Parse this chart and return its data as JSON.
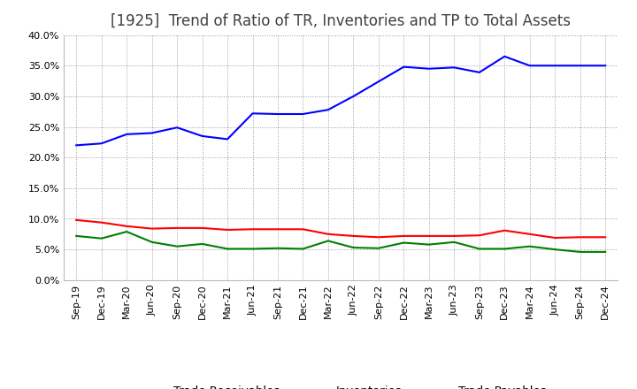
{
  "title": "[1925]  Trend of Ratio of TR, Inventories and TP to Total Assets",
  "x_labels": [
    "Sep-19",
    "Dec-19",
    "Mar-20",
    "Jun-20",
    "Sep-20",
    "Dec-20",
    "Mar-21",
    "Jun-21",
    "Sep-21",
    "Dec-21",
    "Mar-22",
    "Jun-22",
    "Sep-22",
    "Dec-22",
    "Mar-23",
    "Jun-23",
    "Sep-23",
    "Dec-23",
    "Mar-24",
    "Jun-24",
    "Sep-24",
    "Dec-24"
  ],
  "trade_receivables": [
    9.8,
    9.4,
    8.8,
    8.4,
    8.5,
    8.5,
    8.2,
    8.3,
    8.3,
    8.3,
    7.5,
    7.2,
    7.0,
    7.2,
    7.2,
    7.2,
    7.3,
    8.1,
    7.5,
    6.9,
    7.0,
    7.0
  ],
  "inventories": [
    22.0,
    22.3,
    23.8,
    24.0,
    24.9,
    23.5,
    23.0,
    27.2,
    27.1,
    27.1,
    27.8,
    30.0,
    32.4,
    34.8,
    34.5,
    34.7,
    33.9,
    36.5,
    35.0,
    35.0,
    35.0,
    35.0
  ],
  "trade_payables": [
    7.2,
    6.8,
    7.9,
    6.2,
    5.5,
    5.9,
    5.1,
    5.1,
    5.2,
    5.1,
    6.4,
    5.3,
    5.2,
    6.1,
    5.8,
    6.2,
    5.1,
    5.1,
    5.5,
    5.0,
    4.6,
    4.6
  ],
  "ylim": [
    0,
    40
  ],
  "yticks": [
    0,
    5,
    10,
    15,
    20,
    25,
    30,
    35,
    40
  ],
  "line_colors": {
    "trade_receivables": "#FF0000",
    "inventories": "#0000FF",
    "trade_payables": "#008000"
  },
  "background_color": "#FFFFFF",
  "grid_color": "#999999",
  "title_fontsize": 12,
  "legend_fontsize": 9.5,
  "tick_fontsize": 8,
  "title_color": "#404040"
}
